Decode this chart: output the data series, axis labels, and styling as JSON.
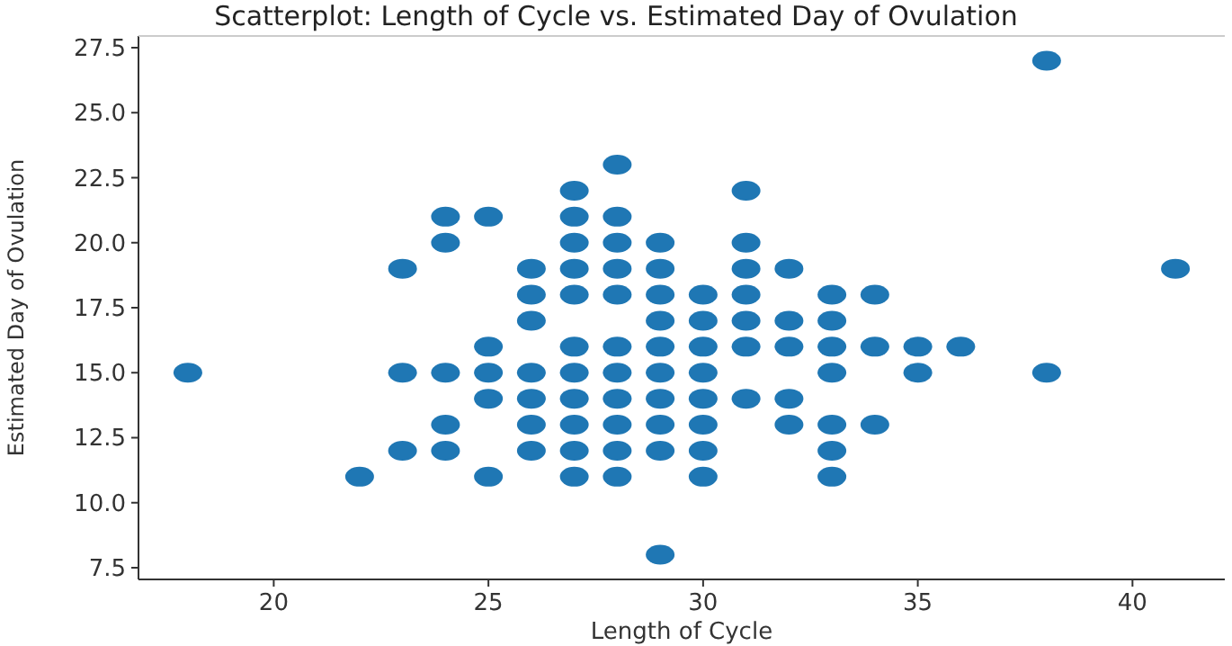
{
  "chart_data": {
    "type": "scatter",
    "title": "Scatterplot: Length of Cycle vs. Estimated Day of Ovulation",
    "xlabel": "Length of Cycle",
    "ylabel": "Estimated Day of Ovulation",
    "x": [
      18,
      22,
      23,
      23,
      23,
      24,
      24,
      24,
      24,
      24,
      25,
      25,
      25,
      25,
      25,
      26,
      26,
      26,
      26,
      26,
      26,
      26,
      27,
      27,
      27,
      27,
      27,
      27,
      27,
      27,
      27,
      27,
      27,
      28,
      28,
      28,
      28,
      28,
      28,
      28,
      28,
      28,
      28,
      28,
      29,
      29,
      29,
      29,
      29,
      29,
      29,
      29,
      29,
      29,
      30,
      30,
      30,
      30,
      30,
      30,
      30,
      30,
      31,
      31,
      31,
      31,
      31,
      31,
      31,
      32,
      32,
      32,
      32,
      32,
      33,
      33,
      33,
      33,
      33,
      33,
      33,
      34,
      34,
      34,
      35,
      35,
      36,
      38,
      38,
      41
    ],
    "values": [
      15,
      11,
      19,
      15,
      12,
      21,
      20,
      15,
      13,
      12,
      21,
      16,
      15,
      14,
      11,
      19,
      18,
      17,
      15,
      14,
      13,
      12,
      22,
      21,
      20,
      19,
      18,
      16,
      15,
      14,
      13,
      12,
      11,
      23,
      21,
      20,
      19,
      18,
      16,
      15,
      14,
      13,
      12,
      11,
      20,
      19,
      18,
      17,
      16,
      15,
      14,
      13,
      12,
      8,
      18,
      17,
      16,
      15,
      14,
      13,
      12,
      11,
      22,
      20,
      19,
      18,
      17,
      16,
      14,
      19,
      17,
      16,
      14,
      13,
      18,
      17,
      16,
      15,
      13,
      12,
      11,
      18,
      16,
      13,
      16,
      15,
      16,
      27,
      15,
      19
    ],
    "color": "#1f77b4",
    "marker": "circle",
    "xlim": [
      16.85,
      42.15
    ],
    "ylim": [
      7.05,
      27.95
    ],
    "xticks": [
      20,
      25,
      30,
      35,
      40
    ],
    "yticks": [
      {
        "value": 7.5,
        "label": "7.5"
      },
      {
        "value": 10,
        "label": "10.0"
      },
      {
        "value": 12.5,
        "label": "12.5"
      },
      {
        "value": 15,
        "label": "15.0"
      },
      {
        "value": 17.5,
        "label": "17.5"
      },
      {
        "value": 20,
        "label": "20.0"
      },
      {
        "value": 22.5,
        "label": "22.5"
      },
      {
        "value": 25,
        "label": "25.0"
      },
      {
        "value": 27.5,
        "label": "27.5"
      }
    ]
  }
}
